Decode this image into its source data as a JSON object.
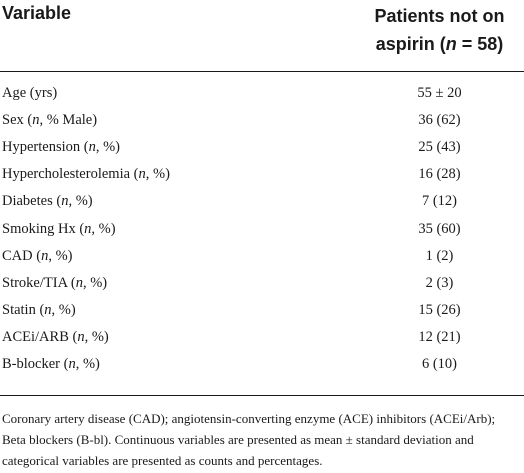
{
  "header": {
    "variable_label": "Variable",
    "column_line1": "Patients not on",
    "column_line2_prefix": "aspirin (",
    "column_line2_n": "n",
    "column_line2_suffix": " = 58)"
  },
  "rows": [
    {
      "label": "Age (yrs)",
      "label_italic": "",
      "label_after": "",
      "value": "55 ± 20"
    },
    {
      "label": "Sex (",
      "label_italic": "n",
      "label_after": ", % Male)",
      "value": "36 (62)"
    },
    {
      "label": "Hypertension (",
      "label_italic": "n",
      "label_after": ", %)",
      "value": "25 (43)"
    },
    {
      "label": "Hypercholesterolemia (",
      "label_italic": "n",
      "label_after": ", %)",
      "value": "16 (28)"
    },
    {
      "label": "Diabetes (",
      "label_italic": "n",
      "label_after": ", %)",
      "value": "7 (12)"
    },
    {
      "label": "Smoking Hx (",
      "label_italic": "n",
      "label_after": ", %)",
      "value": "35 (60)"
    },
    {
      "label": "CAD (",
      "label_italic": "n",
      "label_after": ", %)",
      "value": "1 (2)"
    },
    {
      "label": "Stroke/TIA (",
      "label_italic": "n",
      "label_after": ", %)",
      "value": "2 (3)"
    },
    {
      "label": "Statin (",
      "label_italic": "n",
      "label_after": ", %)",
      "value": "15 (26)"
    },
    {
      "label": "ACEi/ARB (",
      "label_italic": "n",
      "label_after": ", %)",
      "value": "12 (21)"
    },
    {
      "label": "B-blocker (",
      "label_italic": "n",
      "label_after": ", %)",
      "value": "6 (10)"
    }
  ],
  "footnote": "Coronary artery disease (CAD); angiotensin-converting enzyme (ACE) inhibitors (ACEi/Arb); Beta blockers (B-bl). Continuous variables are presented as mean ± standard deviation and categorical variables are presented as counts and percentages."
}
